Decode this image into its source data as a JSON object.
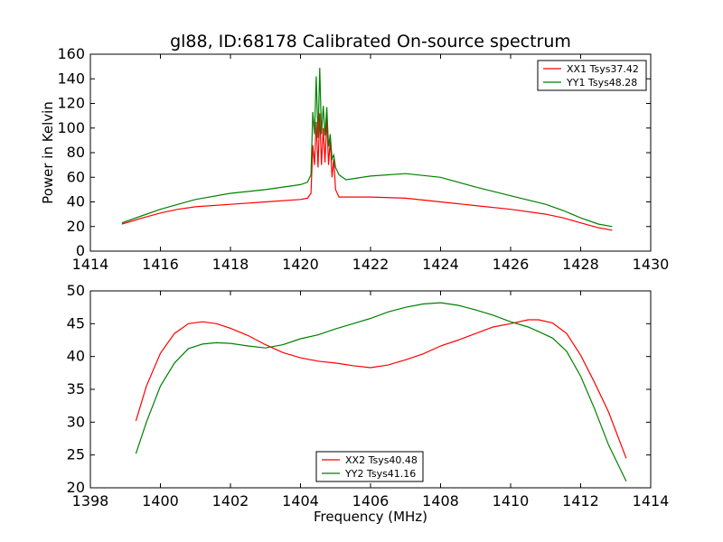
{
  "title": "gl88, ID:68178 Calibrated On-source spectrum",
  "chart_data": [
    {
      "type": "line",
      "ylabel": "Power in Kelvin",
      "xlabel": "",
      "xlim": [
        1414,
        1430
      ],
      "ylim": [
        0,
        160
      ],
      "xticks": [
        "1414",
        "1416",
        "1418",
        "1420",
        "1422",
        "1424",
        "1426",
        "1428",
        "1430"
      ],
      "yticks": [
        "0",
        "20",
        "40",
        "60",
        "80",
        "100",
        "120",
        "140",
        "160"
      ],
      "grid": false,
      "legend_position": "top-right",
      "series": [
        {
          "name": "XX1 Tsys37.42",
          "color": "#ff0000",
          "x": [
            1414.9,
            1415.5,
            1416.0,
            1416.5,
            1417.0,
            1418.0,
            1419.0,
            1420.0,
            1420.2,
            1420.3,
            1420.35,
            1420.4,
            1420.45,
            1420.5,
            1420.55,
            1420.6,
            1420.65,
            1420.7,
            1420.75,
            1420.8,
            1420.85,
            1420.9,
            1420.95,
            1421.0,
            1421.1,
            1421.5,
            1422.0,
            1423.0,
            1424.0,
            1425.0,
            1426.0,
            1427.0,
            1427.5,
            1428.0,
            1428.5,
            1428.9
          ],
          "y": [
            22,
            27,
            31,
            34,
            36,
            38,
            40,
            42,
            43,
            47,
            86,
            70,
            105,
            68,
            112,
            70,
            100,
            72,
            108,
            70,
            90,
            60,
            75,
            50,
            44,
            44,
            44,
            43,
            40,
            37,
            34,
            30,
            27,
            23,
            19,
            17
          ]
        },
        {
          "name": "YY1 Tsys48.28",
          "color": "#008000",
          "x": [
            1414.9,
            1415.5,
            1416.0,
            1416.5,
            1417.0,
            1418.0,
            1419.0,
            1420.0,
            1420.2,
            1420.3,
            1420.35,
            1420.4,
            1420.45,
            1420.5,
            1420.55,
            1420.6,
            1420.65,
            1420.7,
            1420.75,
            1420.8,
            1420.85,
            1420.9,
            1420.95,
            1421.0,
            1421.1,
            1421.3,
            1422.0,
            1423.0,
            1424.0,
            1425.0,
            1426.0,
            1427.0,
            1427.5,
            1428.0,
            1428.5,
            1428.9
          ],
          "y": [
            23,
            29,
            34,
            38,
            42,
            47,
            50,
            54,
            56,
            62,
            113,
            95,
            142,
            92,
            149,
            95,
            118,
            94,
            117,
            85,
            95,
            75,
            78,
            68,
            62,
            58,
            61,
            63,
            60,
            52,
            45,
            38,
            33,
            27,
            22,
            20
          ]
        }
      ]
    },
    {
      "type": "line",
      "ylabel": "",
      "xlabel": "Frequency (MHz)",
      "xlim": [
        1398,
        1414
      ],
      "ylim": [
        20,
        50
      ],
      "xticks": [
        "1398",
        "1400",
        "1402",
        "1404",
        "1406",
        "1408",
        "1410",
        "1412",
        "1414"
      ],
      "yticks": [
        "20",
        "25",
        "30",
        "35",
        "40",
        "45",
        "50"
      ],
      "grid": false,
      "legend_position": "bottom-center",
      "series": [
        {
          "name": "XX2 Tsys40.48",
          "color": "#ff0000",
          "x": [
            1399.3,
            1399.6,
            1400.0,
            1400.4,
            1400.8,
            1401.2,
            1401.6,
            1402.0,
            1402.5,
            1403.0,
            1403.5,
            1404.0,
            1404.5,
            1405.0,
            1405.5,
            1406.0,
            1406.5,
            1407.0,
            1407.5,
            1408.0,
            1408.5,
            1409.0,
            1409.5,
            1410.0,
            1410.5,
            1410.8,
            1411.2,
            1411.6,
            1412.0,
            1412.4,
            1412.8,
            1413.3
          ],
          "y": [
            30.2,
            35.5,
            40.5,
            43.5,
            45.0,
            45.3,
            45.0,
            44.3,
            43.2,
            41.8,
            40.6,
            39.8,
            39.3,
            39.0,
            38.6,
            38.3,
            38.7,
            39.5,
            40.4,
            41.6,
            42.5,
            43.5,
            44.5,
            45.0,
            45.6,
            45.6,
            45.1,
            43.5,
            40.2,
            36.0,
            31.5,
            24.5
          ]
        },
        {
          "name": "YY2 Tsys41.16",
          "color": "#008000",
          "x": [
            1399.3,
            1399.6,
            1400.0,
            1400.4,
            1400.8,
            1401.2,
            1401.6,
            1402.0,
            1402.5,
            1403.0,
            1403.5,
            1404.0,
            1404.5,
            1405.0,
            1405.5,
            1406.0,
            1406.5,
            1407.0,
            1407.5,
            1408.0,
            1408.5,
            1409.0,
            1409.5,
            1410.0,
            1410.5,
            1410.8,
            1411.2,
            1411.6,
            1412.0,
            1412.4,
            1412.8,
            1413.3
          ],
          "y": [
            25.2,
            30.0,
            35.5,
            39.0,
            41.2,
            41.9,
            42.1,
            42.0,
            41.6,
            41.3,
            41.8,
            42.7,
            43.3,
            44.2,
            45.0,
            45.8,
            46.8,
            47.5,
            48.0,
            48.2,
            47.8,
            47.1,
            46.3,
            45.3,
            44.5,
            43.8,
            42.8,
            40.8,
            37.0,
            32.0,
            26.5,
            21.0
          ]
        }
      ]
    }
  ]
}
